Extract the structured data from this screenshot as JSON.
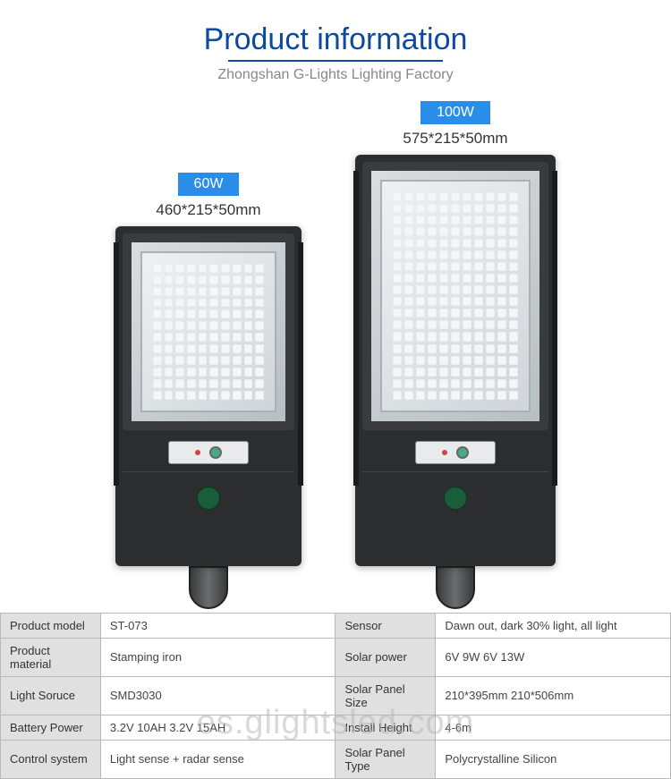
{
  "header": {
    "title": "Product information",
    "subtitle": "Zhongshan G-Lights Lighting Factory"
  },
  "products": [
    {
      "badge": "60W",
      "dimensions": "460*215*50mm",
      "badge_color": "#2a8ee8",
      "size_class": "60"
    },
    {
      "badge": "100W",
      "dimensions": "575*215*50mm",
      "badge_color": "#2a8ee8",
      "size_class": "100"
    }
  ],
  "spec_table": {
    "columns": [
      "label",
      "value",
      "label",
      "value"
    ],
    "rows": [
      [
        "Product model",
        "ST-073",
        "Sensor",
        "Dawn out, dark 30% light, all light"
      ],
      [
        "Product material",
        "Stamping iron",
        "Solar power",
        "6V 9W  6V 13W"
      ],
      [
        "Light Soruce",
        "SMD3030",
        "Solar Panel Size",
        "210*395mm  210*506mm"
      ],
      [
        "Battery Power",
        "3.2V 10AH  3.2V 15AH",
        "Install Height",
        "4-6m"
      ],
      [
        "Control system",
        "Light sense + radar sense",
        "Solar Panel Type",
        "Polycrystalline Silicon"
      ]
    ],
    "label_bg": "#e0e0e0",
    "value_bg": "#ffffff",
    "border_color": "#b8b8b8"
  },
  "watermark": "es.glightsled.com",
  "colors": {
    "title": "#0d4a9e",
    "subtitle": "#888888",
    "device_body": "#2c2d2f"
  }
}
